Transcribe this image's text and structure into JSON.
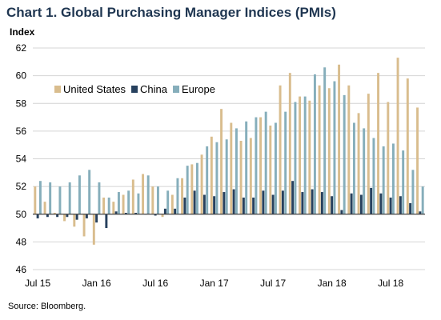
{
  "page": {
    "title": "Chart 1. Global Purchasing Manager Indices (PMIs)",
    "source": "Source: Bloomberg."
  },
  "chart_data": {
    "type": "bar",
    "title": "Chart 1. Global Purchasing Manager Indices (PMIs)",
    "ylabel": "Index",
    "xlabel": "",
    "ylim": [
      46,
      62
    ],
    "yticks": [
      46,
      48,
      50,
      52,
      54,
      56,
      58,
      60,
      62
    ],
    "baseline": 50,
    "grid": true,
    "legend_position": "upper-left",
    "categories": [
      "Jul 15",
      "Aug 15",
      "Sep 15",
      "Oct 15",
      "Nov 15",
      "Dec 15",
      "Jan 16",
      "Feb 16",
      "Mar 16",
      "Apr 16",
      "May 16",
      "Jun 16",
      "Jul 16",
      "Aug 16",
      "Sep 16",
      "Oct 16",
      "Nov 16",
      "Dec 16",
      "Jan 17",
      "Feb 17",
      "Mar 17",
      "Apr 17",
      "May 17",
      "Jun 17",
      "Jul 17",
      "Aug 17",
      "Sep 17",
      "Oct 17",
      "Nov 17",
      "Dec 17",
      "Jan 18",
      "Feb 18",
      "Mar 18",
      "Apr 18",
      "May 18",
      "Jun 18",
      "Jul 18",
      "Aug 18",
      "Sep 18",
      "Oct 18"
    ],
    "x_tick_labels": [
      {
        "index": 0,
        "label": "Jul 15"
      },
      {
        "index": 6,
        "label": "Jan 16"
      },
      {
        "index": 12,
        "label": "Jul 16"
      },
      {
        "index": 18,
        "label": "Jan 17"
      },
      {
        "index": 24,
        "label": "Jul 17"
      },
      {
        "index": 30,
        "label": "Jan 18"
      },
      {
        "index": 36,
        "label": "Jul 18"
      }
    ],
    "series": [
      {
        "name": "United States",
        "color": "#d9bd8e",
        "values": [
          52.0,
          50.9,
          50.1,
          49.5,
          49.1,
          48.4,
          47.8,
          51.2,
          50.9,
          51.4,
          52.5,
          52.9,
          52.0,
          49.8,
          51.4,
          52.6,
          53.6,
          54.3,
          55.6,
          57.6,
          56.6,
          55.3,
          55.5,
          57.0,
          56.4,
          59.3,
          60.2,
          58.5,
          58.2,
          59.3,
          59.1,
          60.8,
          59.3,
          57.3,
          58.7,
          60.2,
          58.1,
          61.3,
          59.8,
          57.7
        ]
      },
      {
        "name": "China",
        "color": "#27415e",
        "values": [
          49.7,
          49.8,
          49.8,
          49.8,
          49.6,
          49.7,
          49.4,
          49.0,
          50.2,
          50.1,
          50.1,
          50.0,
          49.9,
          50.4,
          50.4,
          51.2,
          51.7,
          51.4,
          51.3,
          51.6,
          51.8,
          51.2,
          51.2,
          51.7,
          51.4,
          51.7,
          52.4,
          51.6,
          51.8,
          51.6,
          51.3,
          50.3,
          51.5,
          51.4,
          51.9,
          51.5,
          51.2,
          51.3,
          50.8,
          50.2
        ]
      },
      {
        "name": "Europe",
        "color": "#86aebb",
        "values": [
          52.4,
          52.3,
          52.0,
          52.3,
          52.8,
          53.2,
          52.3,
          51.2,
          51.6,
          51.7,
          51.5,
          52.8,
          52.0,
          51.7,
          52.6,
          53.5,
          53.7,
          54.9,
          55.2,
          55.4,
          56.2,
          56.7,
          57.0,
          57.4,
          56.6,
          57.4,
          58.1,
          58.5,
          60.1,
          60.6,
          59.6,
          58.6,
          56.6,
          56.2,
          55.5,
          54.9,
          55.1,
          54.6,
          53.2,
          52.0
        ]
      }
    ]
  }
}
